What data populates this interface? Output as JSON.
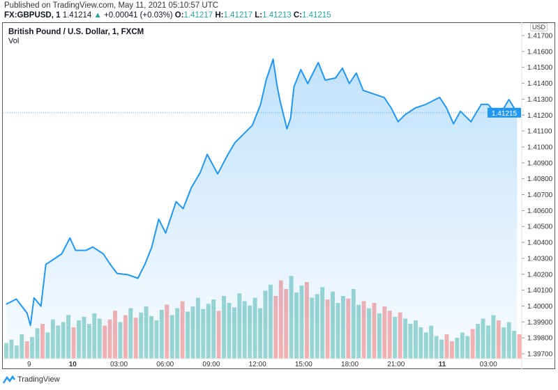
{
  "header": {
    "published": "Published on TradingView.com, May 11, 2021 05:10:57 UTC",
    "symbol": "FX:GBPUSD, 1",
    "last": "1.41214",
    "change": "+0.00041 (+0.03%)",
    "o_label": "O:",
    "o": "1.41217",
    "h_label": "H:",
    "h": "1.41217",
    "l_label": "L:",
    "l": "1.41213",
    "c_label": "C:",
    "c": "1.41215"
  },
  "chart_title": "British Pound / U.S. Dollar, 1, FXCM",
  "volume_label": "Vol",
  "currency": "USD",
  "brand": "TradingView",
  "colors": {
    "line": "#2196f3",
    "up": "#26a69a",
    "down": "#ef5350",
    "last_price_bg": "#2196f3"
  },
  "chart_data": {
    "type": "area",
    "ylim": [
      1.397,
      1.417
    ],
    "yticks": [
      "1.39700",
      "1.39800",
      "1.39900",
      "1.40000",
      "1.40100",
      "1.40200",
      "1.40300",
      "1.40400",
      "1.40500",
      "1.40600",
      "1.40700",
      "1.40800",
      "1.40900",
      "1.41000",
      "1.41100",
      "1.41200",
      "1.41300",
      "1.41400",
      "1.41500",
      "1.41600",
      "1.41700"
    ],
    "xlim": [
      "05-09 19:30",
      "05-11 05:10"
    ],
    "xticks": [
      {
        "label": "9",
        "time": "05-09 21:10",
        "bold": false
      },
      {
        "label": "10",
        "time": "05-10 00:00",
        "bold": true
      },
      {
        "label": "03:00",
        "time": "05-10 03:00",
        "bold": false
      },
      {
        "label": "06:00",
        "time": "05-10 06:00",
        "bold": false
      },
      {
        "label": "09:00",
        "time": "05-10 09:00",
        "bold": false
      },
      {
        "label": "12:00",
        "time": "05-10 12:00",
        "bold": false
      },
      {
        "label": "15:00",
        "time": "05-10 15:00",
        "bold": false
      },
      {
        "label": "18:00",
        "time": "05-10 18:00",
        "bold": false
      },
      {
        "label": "21:00",
        "time": "05-10 21:00",
        "bold": false
      },
      {
        "label": "11",
        "time": "05-11 00:00",
        "bold": true
      },
      {
        "label": "03:00",
        "time": "05-11 03:00",
        "bold": false
      }
    ],
    "last_price": "1.41215",
    "grid": false,
    "series": [
      {
        "points": [
          [
            "05-09 19:40",
            1.40011
          ],
          [
            "05-09 20:20",
            1.40044
          ],
          [
            "05-09 21:02",
            1.39956
          ],
          [
            "05-09 21:15",
            1.39878
          ],
          [
            "05-09 21:29",
            1.40052
          ],
          [
            "05-09 21:56",
            1.39999
          ],
          [
            "05-09 22:15",
            1.40262
          ],
          [
            "05-09 22:36",
            1.40284
          ],
          [
            "05-09 23:17",
            1.40328
          ],
          [
            "05-09 23:49",
            1.40428
          ],
          [
            "05-10 00:11",
            1.4035
          ],
          [
            "05-10 00:51",
            1.4035
          ],
          [
            "05-10 01:18",
            1.40371
          ],
          [
            "05-10 01:59",
            1.40328
          ],
          [
            "05-10 02:26",
            1.40262
          ],
          [
            "05-10 02:53",
            1.40205
          ],
          [
            "05-10 03:34",
            1.40197
          ],
          [
            "05-10 04:14",
            1.40175
          ],
          [
            "05-10 04:41",
            1.40262
          ],
          [
            "05-10 05:08",
            1.40371
          ],
          [
            "05-10 05:35",
            1.40546
          ],
          [
            "05-10 06:02",
            1.40459
          ],
          [
            "05-10 06:43",
            1.40656
          ],
          [
            "05-10 07:10",
            1.40612
          ],
          [
            "05-10 07:42",
            1.40743
          ],
          [
            "05-10 08:17",
            1.40839
          ],
          [
            "05-10 08:44",
            1.40953
          ],
          [
            "05-10 09:25",
            1.4083
          ],
          [
            "05-10 10:05",
            1.40953
          ],
          [
            "05-10 10:32",
            1.41027
          ],
          [
            "05-10 11:13",
            1.41093
          ],
          [
            "05-10 11:40",
            1.41136
          ],
          [
            "05-10 12:12",
            1.41267
          ],
          [
            "05-10 12:34",
            1.4142
          ],
          [
            "05-10 13:01",
            1.41551
          ],
          [
            "05-10 13:15",
            1.41398
          ],
          [
            "05-10 13:28",
            1.41289
          ],
          [
            "05-10 13:55",
            1.41114
          ],
          [
            "05-10 14:09",
            1.4118
          ],
          [
            "05-10 14:22",
            1.41377
          ],
          [
            "05-10 14:49",
            1.41486
          ],
          [
            "05-10 15:16",
            1.41398
          ],
          [
            "05-10 15:57",
            1.4153
          ],
          [
            "05-10 16:24",
            1.4142
          ],
          [
            "05-10 17:04",
            1.41433
          ],
          [
            "05-10 17:31",
            1.41495
          ],
          [
            "05-10 17:58",
            1.41398
          ],
          [
            "05-10 18:25",
            1.41464
          ],
          [
            "05-10 18:52",
            1.41355
          ],
          [
            "05-10 19:33",
            1.41333
          ],
          [
            "05-10 20:14",
            1.41311
          ],
          [
            "05-10 20:41",
            1.41245
          ],
          [
            "05-10 21:08",
            1.41158
          ],
          [
            "05-10 21:35",
            1.41202
          ],
          [
            "05-10 22:15",
            1.41245
          ],
          [
            "05-10 22:56",
            1.41267
          ],
          [
            "05-10 23:50",
            1.41311
          ],
          [
            "05-11 00:17",
            1.41245
          ],
          [
            "05-11 00:44",
            1.41145
          ],
          [
            "05-11 01:11",
            1.41224
          ],
          [
            "05-11 01:52",
            1.41158
          ],
          [
            "05-11 02:32",
            1.41267
          ],
          [
            "05-11 02:59",
            1.41267
          ],
          [
            "05-11 03:40",
            1.41189
          ],
          [
            "05-11 04:20",
            1.41298
          ],
          [
            "05-11 04:52",
            1.41215
          ]
        ]
      }
    ],
    "volume": [
      18,
      22,
      15,
      28,
      20,
      25,
      35,
      40,
      30,
      45,
      38,
      42,
      50,
      36,
      44,
      48,
      40,
      52,
      46,
      38,
      45,
      55,
      42,
      50,
      58,
      47,
      53,
      60,
      49,
      44,
      56,
      62,
      50,
      58,
      66,
      54,
      60,
      70,
      57,
      63,
      68,
      55,
      72,
      64,
      59,
      75,
      66,
      61,
      70,
      58,
      78,
      85,
      72,
      90,
      80,
      95,
      76,
      84,
      88,
      70,
      74,
      82,
      68,
      77,
      64,
      72,
      69,
      80,
      62,
      66,
      58,
      64,
      52,
      60,
      55,
      48,
      53,
      46,
      40,
      44,
      36,
      30,
      38,
      26,
      22,
      28,
      20,
      24,
      30,
      26,
      34,
      40,
      46,
      38,
      50,
      44,
      36,
      42,
      32,
      28
    ]
  }
}
